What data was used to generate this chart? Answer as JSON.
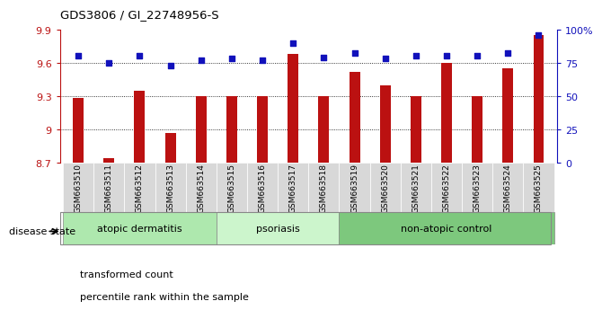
{
  "title": "GDS3806 / GI_22748956-S",
  "samples": [
    "GSM663510",
    "GSM663511",
    "GSM663512",
    "GSM663513",
    "GSM663514",
    "GSM663515",
    "GSM663516",
    "GSM663517",
    "GSM663518",
    "GSM663519",
    "GSM663520",
    "GSM663521",
    "GSM663522",
    "GSM663523",
    "GSM663524",
    "GSM663525"
  ],
  "bar_values": [
    9.28,
    8.74,
    9.35,
    8.97,
    9.3,
    9.3,
    9.3,
    9.68,
    9.3,
    9.52,
    9.4,
    9.3,
    9.6,
    9.3,
    9.55,
    9.85
  ],
  "dot_values": [
    80,
    75,
    80,
    73,
    77,
    78,
    77,
    90,
    79,
    82,
    78,
    80,
    80,
    80,
    82,
    96
  ],
  "ylim_left": [
    8.7,
    9.9
  ],
  "ylim_right": [
    0,
    100
  ],
  "yticks_left": [
    8.7,
    9.0,
    9.3,
    9.6,
    9.9
  ],
  "ytick_labels_left": [
    "8.7",
    "9",
    "9.3",
    "9.6",
    "9.9"
  ],
  "yticks_right": [
    0,
    25,
    50,
    75,
    100
  ],
  "ytick_labels_right": [
    "0",
    "25",
    "50",
    "75",
    "100%"
  ],
  "bar_color": "#bb1111",
  "dot_color": "#1111bb",
  "background_color": "#ffffff",
  "group_labels": [
    "atopic dermatitis",
    "psoriasis",
    "non-atopic control"
  ],
  "group_ranges": [
    [
      0,
      4
    ],
    [
      5,
      8
    ],
    [
      9,
      15
    ]
  ],
  "group_colors": [
    "#b8e8b8",
    "#ccf5cc",
    "#88cc88"
  ],
  "disease_state_label": "disease state",
  "legend_bar_label": "transformed count",
  "legend_dot_label": "percentile rank within the sample",
  "bar_width": 0.35
}
